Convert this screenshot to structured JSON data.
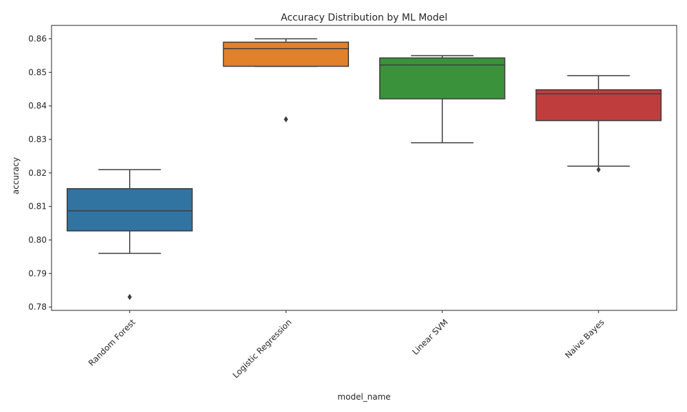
{
  "chart_data": {
    "type": "box",
    "title": "Accuracy Distribution by ML Model",
    "xlabel": "model_name",
    "ylabel": "accuracy",
    "ylim": [
      0.779,
      0.864
    ],
    "yticks": [
      "0.78",
      "0.79",
      "0.80",
      "0.81",
      "0.82",
      "0.83",
      "0.84",
      "0.85",
      "0.86"
    ],
    "grid": false,
    "categories": [
      "Random Forest",
      "Logistic Regression",
      "Linear SVM",
      "Naive Bayes"
    ],
    "series": [
      {
        "whisker_low": 0.796,
        "q1": 0.8027,
        "median": 0.8087,
        "q3": 0.8153,
        "whisker_high": 0.821,
        "outliers": [
          0.783
        ],
        "color": "#3274a1"
      },
      {
        "whisker_low": 0.8518,
        "q1": 0.8518,
        "median": 0.8571,
        "q3": 0.859,
        "whisker_high": 0.86,
        "outliers": [
          0.836
        ],
        "color": "#e1812c"
      },
      {
        "whisker_low": 0.829,
        "q1": 0.8421,
        "median": 0.8522,
        "q3": 0.8543,
        "whisker_high": 0.855,
        "outliers": [],
        "color": "#3a923a"
      },
      {
        "whisker_low": 0.822,
        "q1": 0.8356,
        "median": 0.8436,
        "q3": 0.8448,
        "whisker_high": 0.849,
        "outliers": [
          0.821
        ],
        "color": "#c03d3e"
      }
    ]
  }
}
